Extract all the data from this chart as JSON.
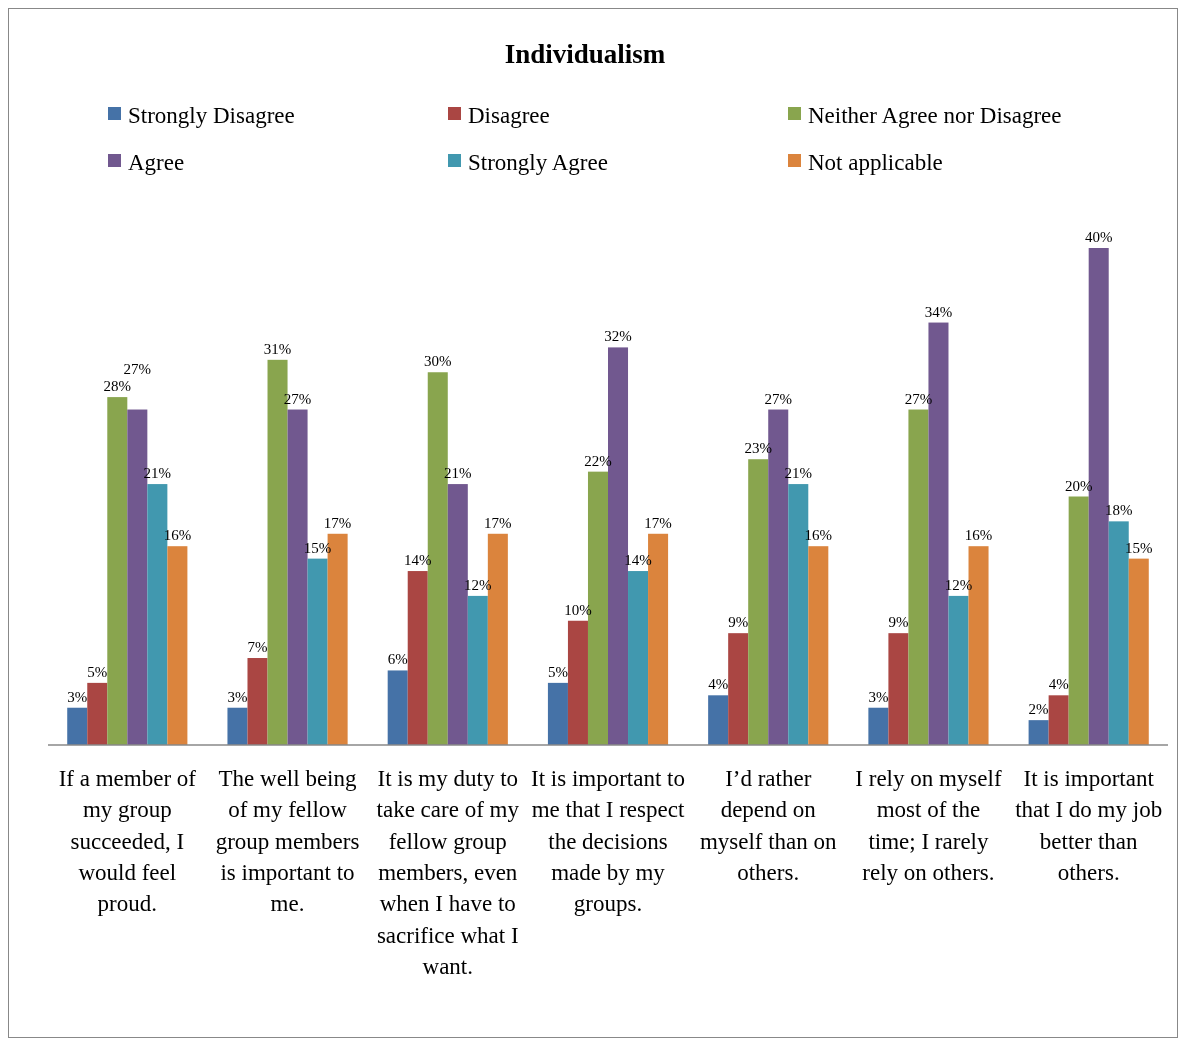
{
  "chart_data": {
    "type": "bar",
    "title": "Individualism",
    "categories": [
      "If a member of my group succeeded, I would feel proud.",
      "The well being of my fellow group members is important to me.",
      "It is my duty to take care of my fellow group members, even when I have to sacrifice what I want.",
      "It is important to me that I respect the decisions made by my groups.",
      "I’d rather depend on myself than on others.",
      "I rely on myself most of the time; I rarely rely on others.",
      "It is important that I do my job better than others."
    ],
    "series": [
      {
        "name": "Strongly Disagree",
        "color": "#4572a7",
        "values": [
          3,
          3,
          6,
          5,
          4,
          3,
          2
        ],
        "value_labels": [
          "3%",
          "3%",
          "6%",
          "5%",
          "4%",
          "3%",
          "2%"
        ]
      },
      {
        "name": "Disagree",
        "color": "#aa4643",
        "values": [
          5,
          7,
          14,
          10,
          9,
          9,
          4
        ],
        "value_labels": [
          "5%",
          "7%",
          "14%",
          "10%",
          "9%",
          "9%",
          "4%"
        ]
      },
      {
        "name": "Neither Agree nor Disagree",
        "color": "#89a54e",
        "values": [
          28,
          31,
          30,
          22,
          23,
          27,
          20
        ],
        "value_labels": [
          "28%",
          "31%",
          "30%",
          "22%",
          "23%",
          "27%",
          "20%"
        ]
      },
      {
        "name": "Agree",
        "color": "#71588f",
        "values": [
          27,
          27,
          21,
          32,
          27,
          34,
          40
        ],
        "value_labels": [
          "27%",
          "27%",
          "21%",
          "32%",
          "27%",
          "34%",
          "40%"
        ]
      },
      {
        "name": "Strongly Agree",
        "color": "#4198af",
        "values": [
          21,
          15,
          12,
          14,
          21,
          12,
          18
        ],
        "value_labels": [
          "21%",
          "15%",
          "12%",
          "14%",
          "21%",
          "12%",
          "18%"
        ]
      },
      {
        "name": "Not applicable",
        "color": "#db843d",
        "values": [
          16,
          17,
          17,
          17,
          16,
          16,
          15
        ],
        "value_labels": [
          "16%",
          "17%",
          "17%",
          "17%",
          "16%",
          "16%",
          "15%"
        ]
      }
    ],
    "relative": false,
    "legend": "top",
    "tick_labels": "x"
  }
}
